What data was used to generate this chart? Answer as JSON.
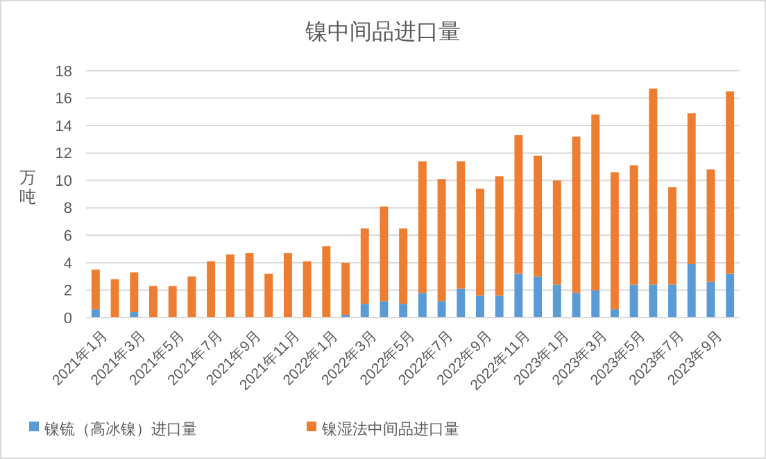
{
  "chart_data": {
    "type": "bar",
    "title": "镍中间品进口量",
    "ylabel": "万吨",
    "stacked": true,
    "grid": "y",
    "legend": "bottom",
    "categories": [
      "2021年1月",
      null,
      "2021年3月",
      null,
      "2021年5月",
      null,
      "2021年7月",
      null,
      "2021年9月",
      null,
      "2021年11月",
      null,
      "2022年1月",
      null,
      "2022年3月",
      null,
      "2022年5月",
      null,
      "2022年7月",
      null,
      "2022年9月",
      null,
      "2022年11月",
      null,
      "2023年1月",
      null,
      "2023年3月",
      null,
      "2023年5月",
      null,
      "2023年7月",
      null,
      "2023年9月",
      null
    ],
    "ylim": [
      0,
      18
    ],
    "yticks": [
      0,
      2,
      4,
      6,
      8,
      10,
      12,
      14,
      16,
      18
    ],
    "series": [
      {
        "name": "镍锍（高冰镍）进口量",
        "color": "#5b9bd5",
        "values": [
          0.6,
          null,
          0.4,
          null,
          null,
          null,
          null,
          null,
          null,
          null,
          null,
          null,
          null,
          0.2,
          1.0,
          1.2,
          1.0,
          1.8,
          1.2,
          2.1,
          1.6,
          1.6,
          3.2,
          3.0,
          2.4,
          1.8,
          2.0,
          0.6,
          2.4,
          2.4,
          2.4,
          3.9,
          2.6,
          3.2
        ]
      },
      {
        "name": "镍湿法中间品进口量",
        "color": "#ed7d31",
        "values": [
          2.9,
          2.8,
          2.9,
          2.3,
          2.3,
          3.0,
          4.1,
          4.6,
          4.7,
          3.2,
          4.7,
          4.1,
          5.2,
          3.8,
          5.5,
          6.9,
          5.5,
          9.6,
          8.9,
          9.3,
          7.8,
          8.7,
          10.1,
          8.8,
          7.6,
          11.4,
          12.8,
          10.0,
          8.7,
          14.3,
          7.1,
          11.0,
          8.2,
          13.3
        ]
      }
    ]
  }
}
